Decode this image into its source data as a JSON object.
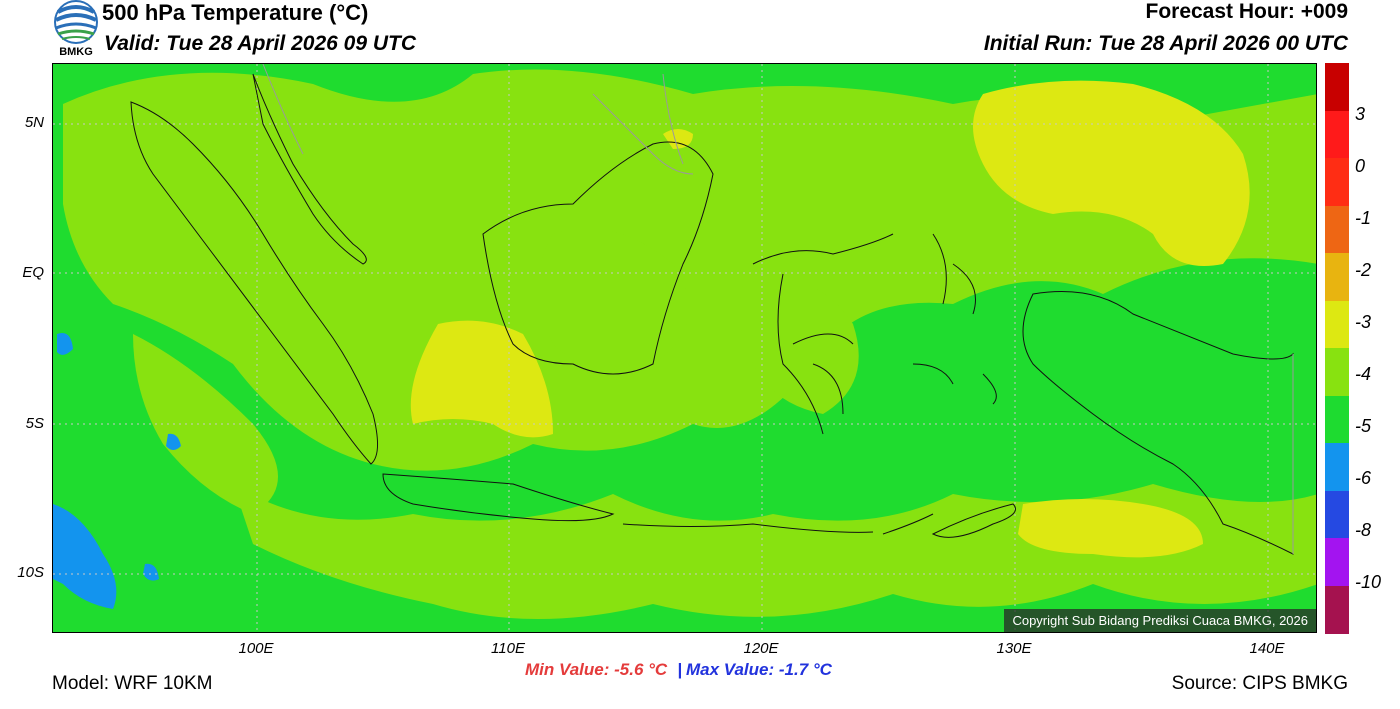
{
  "header": {
    "title": "500 hPa Temperature (°C)",
    "valid": "Valid: Tue 28 April 2026 09 UTC",
    "forecast_hour": "Forecast Hour: +009",
    "initial_run": "Initial Run: Tue 28 April 2026 00 UTC"
  },
  "logo": {
    "text": "BMKG",
    "icon": "bmkg-logo-icon"
  },
  "map": {
    "lat_labels": [
      "5N",
      "EQ",
      "5S",
      "10S"
    ],
    "lon_labels": [
      "100E",
      "110E",
      "120E",
      "130E",
      "140E"
    ],
    "copyright": "Copyright Sub Bidang Prediksi Cuaca BMKG, 2026"
  },
  "colorbar": {
    "labels": [
      "3",
      "0",
      "-1",
      "-2",
      "-3",
      "-4",
      "-5",
      "-6",
      "-8",
      "-10"
    ],
    "colors": [
      "#c80000",
      "#ff1a1a",
      "#ff2d14",
      "#ee6614",
      "#e8b410",
      "#dde812",
      "#88e210",
      "#1edb30",
      "#1394ee",
      "#2549e2",
      "#a314f0",
      "#a5124f"
    ]
  },
  "stats": {
    "min_label": "Min Value: -5.6 °C",
    "sep": "|",
    "max_label": "Max Value: -1.7 °C"
  },
  "footer": {
    "model": "Model: WRF 10KM",
    "source": "Source: CIPS BMKG"
  }
}
